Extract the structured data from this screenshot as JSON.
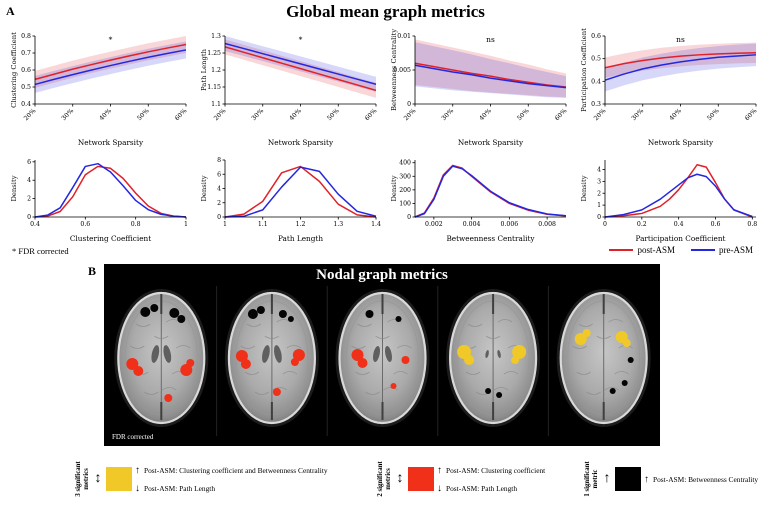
{
  "figure": {
    "panel_a_label": "A",
    "panel_b_label": "B"
  },
  "panel_a": {
    "title": "Global mean graph metrics",
    "fdr_note": "* FDR corrected",
    "legend": [
      {
        "label": "post-ASM",
        "color": "#e02128"
      },
      {
        "label": "pre-ASM",
        "color": "#2427e0"
      }
    ]
  },
  "panel_b": {
    "title": "Nodal graph metrics",
    "fdr_note": "FDR corrected"
  },
  "bottom_legend": [
    {
      "rotated_label": "3 significant metrics",
      "direction_glyph": "↕",
      "color": "#f0c929",
      "entries": [
        {
          "arrow": "↑",
          "text": "Post-ASM: Clustering coefficient and Betweenness Centrality"
        },
        {
          "arrow": "↓",
          "text": "Post-ASM: Path Length"
        }
      ]
    },
    {
      "rotated_label": "2 significant metrics",
      "direction_glyph": "↕",
      "color": "#f03018",
      "entries": [
        {
          "arrow": "↑",
          "text": "Post-ASM: Clustering coefficient"
        },
        {
          "arrow": "↓",
          "text": "Post-ASM: Path Length"
        }
      ]
    },
    {
      "rotated_label": "1 significant metric",
      "direction_glyph": "↑",
      "color": "#000000",
      "entries": [
        {
          "arrow": "↑",
          "text": "Post-ASM: Betweenness Centrality"
        }
      ]
    }
  ],
  "chart_data": [
    {
      "type": "line",
      "panel": "sparsity",
      "significance": "*",
      "xlabel": "Network Sparsity",
      "ylabel": "Clustering Coefficient",
      "xlim": [
        20,
        60
      ],
      "ylim": [
        0.4,
        0.8
      ],
      "xticks": [
        20,
        30,
        40,
        50,
        60
      ],
      "xtick_labels": [
        "20%",
        "30%",
        "40%",
        "50%",
        "60%"
      ],
      "yticks": [
        0.4,
        0.5,
        0.6,
        0.7,
        0.8
      ],
      "rotate_xticks": true,
      "x": [
        20,
        25,
        30,
        35,
        40,
        45,
        50,
        55,
        60
      ],
      "series": [
        {
          "name": "post-ASM",
          "color": "#e02128",
          "values": [
            0.545,
            0.575,
            0.605,
            0.632,
            0.658,
            0.683,
            0.707,
            0.729,
            0.75
          ],
          "band_upper": [
            0.595,
            0.625,
            0.655,
            0.682,
            0.708,
            0.733,
            0.757,
            0.779,
            0.8
          ],
          "band_lower": [
            0.495,
            0.525,
            0.555,
            0.582,
            0.608,
            0.633,
            0.657,
            0.679,
            0.7
          ]
        },
        {
          "name": "pre-ASM",
          "color": "#2427e0",
          "values": [
            0.515,
            0.545,
            0.573,
            0.6,
            0.626,
            0.651,
            0.675,
            0.697,
            0.718
          ],
          "band_upper": [
            0.565,
            0.595,
            0.623,
            0.65,
            0.676,
            0.701,
            0.725,
            0.747,
            0.768
          ],
          "band_lower": [
            0.465,
            0.495,
            0.523,
            0.55,
            0.576,
            0.601,
            0.625,
            0.647,
            0.668
          ]
        }
      ]
    },
    {
      "type": "line",
      "panel": "sparsity",
      "significance": "*",
      "xlabel": "Network Sparsity",
      "ylabel": "Path Length",
      "xlim": [
        20,
        60
      ],
      "ylim": [
        1.1,
        1.3
      ],
      "xticks": [
        20,
        30,
        40,
        50,
        60
      ],
      "xtick_labels": [
        "20%",
        "30%",
        "40%",
        "50%",
        "60%"
      ],
      "yticks": [
        1.1,
        1.15,
        1.2,
        1.25,
        1.3
      ],
      "rotate_xticks": true,
      "x": [
        20,
        25,
        30,
        35,
        40,
        45,
        50,
        55,
        60
      ],
      "series": [
        {
          "name": "post-ASM",
          "color": "#e02128",
          "values": [
            1.268,
            1.252,
            1.236,
            1.22,
            1.204,
            1.188,
            1.172,
            1.156,
            1.14
          ],
          "band_upper": [
            1.29,
            1.274,
            1.258,
            1.242,
            1.226,
            1.21,
            1.194,
            1.178,
            1.162
          ],
          "band_lower": [
            1.246,
            1.23,
            1.214,
            1.198,
            1.182,
            1.166,
            1.15,
            1.134,
            1.118
          ]
        },
        {
          "name": "pre-ASM",
          "color": "#2427e0",
          "values": [
            1.278,
            1.263,
            1.248,
            1.233,
            1.218,
            1.203,
            1.188,
            1.173,
            1.158
          ],
          "band_upper": [
            1.3,
            1.285,
            1.27,
            1.255,
            1.24,
            1.225,
            1.21,
            1.195,
            1.18
          ],
          "band_lower": [
            1.256,
            1.241,
            1.226,
            1.211,
            1.196,
            1.181,
            1.166,
            1.151,
            1.136
          ]
        }
      ]
    },
    {
      "type": "line",
      "panel": "sparsity",
      "significance": "ns",
      "xlabel": "Network Sparsity",
      "ylabel": "Betweenness Centrality",
      "xlim": [
        20,
        60
      ],
      "ylim": [
        0,
        0.01
      ],
      "xticks": [
        20,
        30,
        40,
        50,
        60
      ],
      "xtick_labels": [
        "20%",
        "30%",
        "40%",
        "50%",
        "60%"
      ],
      "yticks": [
        0,
        0.005,
        0.01
      ],
      "ytick_labels": [
        "0",
        "0.005",
        "0.01"
      ],
      "rotate_xticks": true,
      "x": [
        20,
        25,
        30,
        35,
        40,
        45,
        50,
        55,
        60
      ],
      "series": [
        {
          "name": "post-ASM",
          "color": "#e02128",
          "values": [
            0.006,
            0.0055,
            0.005,
            0.0045,
            0.0041,
            0.0036,
            0.0032,
            0.0028,
            0.0025
          ],
          "band_upper": [
            0.0095,
            0.0089,
            0.0083,
            0.0077,
            0.0071,
            0.0064,
            0.0058,
            0.0051,
            0.0045
          ],
          "band_lower": [
            0.0028,
            0.0025,
            0.0022,
            0.0019,
            0.0017,
            0.0015,
            0.0013,
            0.0011,
            0.001
          ]
        },
        {
          "name": "pre-ASM",
          "color": "#2427e0",
          "values": [
            0.0057,
            0.0052,
            0.0047,
            0.0043,
            0.0038,
            0.0034,
            0.003,
            0.0027,
            0.0024
          ],
          "band_upper": [
            0.0091,
            0.0085,
            0.0079,
            0.0073,
            0.0066,
            0.006,
            0.0053,
            0.0047,
            0.0041
          ],
          "band_lower": [
            0.0026,
            0.0023,
            0.002,
            0.0018,
            0.0016,
            0.0014,
            0.0012,
            0.001,
            0.0009
          ]
        }
      ]
    },
    {
      "type": "line",
      "panel": "sparsity",
      "significance": "ns",
      "xlabel": "Network Sparsity",
      "ylabel": "Participation Coefficient",
      "xlim": [
        20,
        60
      ],
      "ylim": [
        0.3,
        0.6
      ],
      "xticks": [
        20,
        30,
        40,
        50,
        60
      ],
      "xtick_labels": [
        "20%",
        "30%",
        "40%",
        "50%",
        "60%"
      ],
      "yticks": [
        0.3,
        0.4,
        0.5,
        0.6
      ],
      "rotate_xticks": true,
      "x": [
        20,
        25,
        30,
        35,
        40,
        45,
        50,
        55,
        60
      ],
      "series": [
        {
          "name": "post-ASM",
          "color": "#e02128",
          "values": [
            0.46,
            0.478,
            0.492,
            0.503,
            0.511,
            0.517,
            0.521,
            0.524,
            0.526
          ],
          "band_upper": [
            0.505,
            0.523,
            0.537,
            0.548,
            0.556,
            0.562,
            0.566,
            0.569,
            0.571
          ],
          "band_lower": [
            0.415,
            0.433,
            0.447,
            0.458,
            0.466,
            0.472,
            0.476,
            0.479,
            0.481
          ]
        },
        {
          "name": "pre-ASM",
          "color": "#2427e0",
          "values": [
            0.405,
            0.432,
            0.455,
            0.472,
            0.486,
            0.497,
            0.506,
            0.512,
            0.517
          ],
          "band_upper": [
            0.455,
            0.482,
            0.505,
            0.522,
            0.536,
            0.547,
            0.556,
            0.562,
            0.567
          ],
          "band_lower": [
            0.355,
            0.382,
            0.405,
            0.422,
            0.436,
            0.447,
            0.456,
            0.462,
            0.467
          ]
        }
      ]
    },
    {
      "type": "line",
      "panel": "density",
      "xlabel": "Clustering Coefficient",
      "ylabel": "Density",
      "xlim": [
        0.4,
        1.0
      ],
      "ylim": [
        0,
        6.2
      ],
      "xticks": [
        0.4,
        0.6,
        0.8,
        1.0
      ],
      "xtick_labels": [
        "0.4",
        "0.6",
        "0.8",
        "1"
      ],
      "yticks": [
        0,
        2,
        4,
        6
      ],
      "rotate_xticks": false,
      "x": [
        0.4,
        0.45,
        0.5,
        0.55,
        0.6,
        0.65,
        0.7,
        0.75,
        0.8,
        0.85,
        0.9,
        0.95,
        1.0
      ],
      "series": [
        {
          "name": "post-ASM",
          "color": "#e02128",
          "values": [
            0,
            0.1,
            0.6,
            2.2,
            4.6,
            5.5,
            5.3,
            4.2,
            2.6,
            1.2,
            0.4,
            0.1,
            0
          ]
        },
        {
          "name": "pre-ASM",
          "color": "#2427e0",
          "values": [
            0,
            0.2,
            1.0,
            3.2,
            5.5,
            5.8,
            4.9,
            3.4,
            1.8,
            0.8,
            0.3,
            0.1,
            0
          ]
        }
      ]
    },
    {
      "type": "line",
      "panel": "density",
      "xlabel": "Path Length",
      "ylabel": "Density",
      "xlim": [
        1.0,
        1.4
      ],
      "ylim": [
        0,
        8
      ],
      "xticks": [
        1.0,
        1.1,
        1.2,
        1.3,
        1.4
      ],
      "xtick_labels": [
        "1",
        "1.1",
        "1.2",
        "1.3",
        "1.4"
      ],
      "yticks": [
        0,
        2,
        4,
        6,
        8
      ],
      "rotate_xticks": false,
      "x": [
        1.0,
        1.05,
        1.1,
        1.15,
        1.2,
        1.25,
        1.3,
        1.35,
        1.4
      ],
      "series": [
        {
          "name": "post-ASM",
          "color": "#e02128",
          "values": [
            0,
            0.4,
            2.2,
            6.2,
            7.1,
            5.0,
            1.8,
            0.3,
            0
          ]
        },
        {
          "name": "pre-ASM",
          "color": "#2427e0",
          "values": [
            0,
            0.1,
            1.0,
            4.2,
            7.0,
            6.4,
            3.2,
            0.8,
            0.1
          ]
        }
      ]
    },
    {
      "type": "line",
      "panel": "density",
      "xlabel": "Betweenness Centrality",
      "ylabel": "Density",
      "xlim": [
        0.001,
        0.009
      ],
      "ylim": [
        0,
        420
      ],
      "xticks": [
        0.002,
        0.004,
        0.006,
        0.008
      ],
      "xtick_labels": [
        "0.002",
        "0.004",
        "0.006",
        "0.008"
      ],
      "yticks": [
        0,
        100,
        200,
        300,
        400
      ],
      "rotate_xticks": false,
      "x": [
        0.001,
        0.0015,
        0.002,
        0.0025,
        0.003,
        0.0035,
        0.004,
        0.005,
        0.006,
        0.007,
        0.008,
        0.009
      ],
      "series": [
        {
          "name": "post-ASM",
          "color": "#e02128",
          "values": [
            0,
            30,
            140,
            310,
            380,
            360,
            300,
            185,
            100,
            50,
            20,
            8
          ]
        },
        {
          "name": "pre-ASM",
          "color": "#2427e0",
          "values": [
            0,
            25,
            130,
            300,
            375,
            355,
            305,
            190,
            105,
            55,
            22,
            9
          ]
        }
      ]
    },
    {
      "type": "line",
      "panel": "density",
      "xlabel": "Participation Coefficient",
      "ylabel": "Density",
      "xlim": [
        0,
        0.82
      ],
      "ylim": [
        0,
        4.8
      ],
      "xticks": [
        0,
        0.2,
        0.4,
        0.6,
        0.8
      ],
      "xtick_labels": [
        "0",
        "0.2",
        "0.4",
        "0.6",
        "0.8"
      ],
      "yticks": [
        0,
        1,
        2,
        3,
        4
      ],
      "rotate_xticks": false,
      "x": [
        0,
        0.1,
        0.2,
        0.3,
        0.35,
        0.4,
        0.45,
        0.5,
        0.55,
        0.6,
        0.65,
        0.7,
        0.8
      ],
      "series": [
        {
          "name": "post-ASM",
          "color": "#e02128",
          "values": [
            0,
            0.1,
            0.3,
            0.9,
            1.5,
            2.3,
            3.3,
            4.4,
            4.2,
            2.9,
            1.5,
            0.6,
            0
          ]
        },
        {
          "name": "pre-ASM",
          "color": "#2427e0",
          "values": [
            0,
            0.2,
            0.6,
            1.5,
            2.1,
            2.7,
            3.3,
            3.6,
            3.4,
            2.6,
            1.5,
            0.6,
            0.05
          ]
        }
      ]
    }
  ]
}
